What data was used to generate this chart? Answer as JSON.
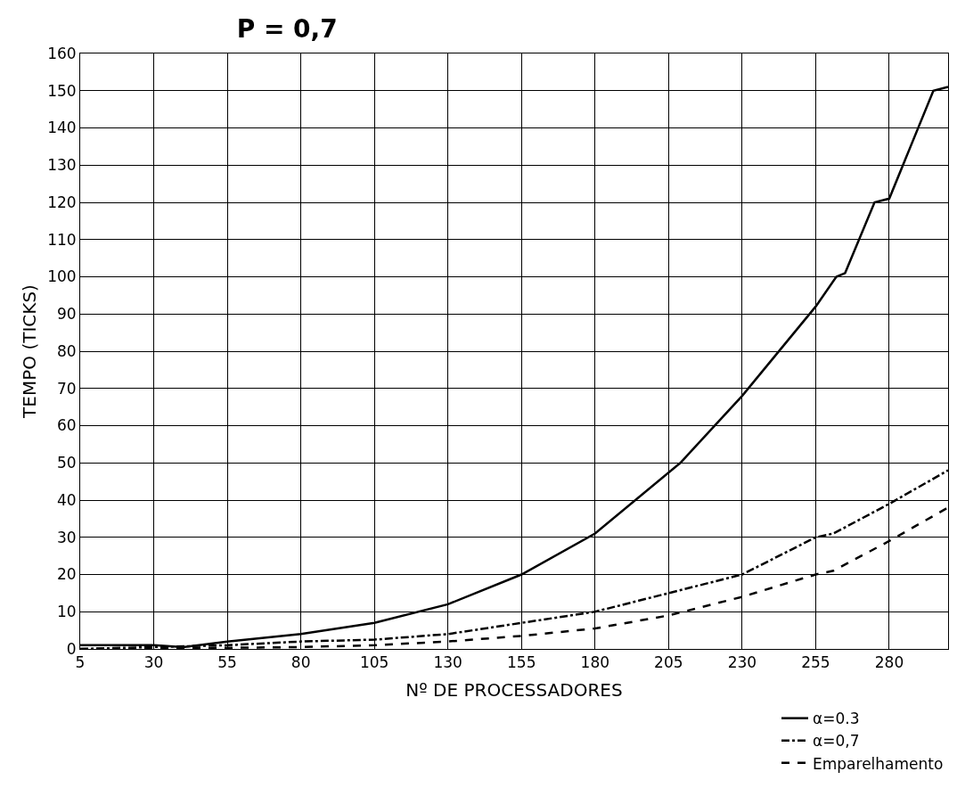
{
  "chart_data": {
    "type": "line",
    "title": "P = 0,7",
    "xlabel": "Nº DE PROCESSADORES",
    "ylabel": "TEMPO (TICKS)",
    "xlim": [
      5,
      300
    ],
    "xticks": [
      5,
      30,
      55,
      80,
      105,
      130,
      155,
      180,
      205,
      230,
      255,
      280
    ],
    "ylim": [
      0,
      160
    ],
    "yticks": [
      0,
      10,
      20,
      30,
      40,
      50,
      60,
      70,
      80,
      90,
      100,
      110,
      120,
      130,
      140,
      150,
      160
    ],
    "grid": true,
    "legend": "bottom right",
    "marker": "none",
    "series": [
      {
        "name": "α=0.3",
        "color": "#000000",
        "line_style": "solid",
        "x": [
          5,
          30,
          40,
          55,
          80,
          105,
          130,
          155,
          180,
          209,
          230,
          255,
          262,
          265,
          275,
          280,
          295,
          300
        ],
        "values": [
          1,
          1,
          0.5,
          2,
          4,
          7,
          12,
          20,
          31,
          50,
          68,
          92,
          100,
          101,
          120,
          121,
          150,
          151
        ]
      },
      {
        "name": "α=0,7",
        "color": "#000000",
        "line_style": "dashdot",
        "x": [
          5,
          30,
          55,
          80,
          105,
          130,
          155,
          180,
          205,
          230,
          255,
          261,
          280,
          300
        ],
        "values": [
          0,
          0.5,
          1,
          2,
          2.5,
          4,
          7,
          10,
          15,
          20,
          30,
          31,
          39,
          48
        ]
      },
      {
        "name": "Emparelhamento",
        "color": "#000000",
        "line_style": "dashed",
        "x": [
          5,
          55,
          80,
          105,
          130,
          155,
          180,
          205,
          230,
          255,
          261,
          280,
          300
        ],
        "values": [
          0,
          0.3,
          0.5,
          1,
          2,
          3.5,
          5.5,
          9,
          14,
          20,
          21,
          29,
          38
        ]
      }
    ]
  }
}
